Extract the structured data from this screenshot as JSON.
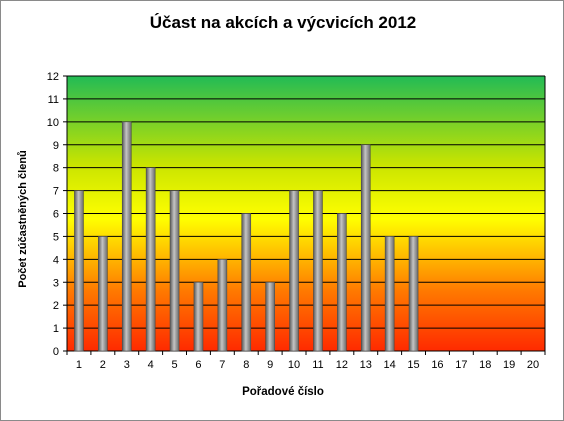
{
  "chart_data": {
    "type": "bar",
    "title": "Účast na akcích a výcvicích 2012",
    "xlabel": "Pořadové číslo",
    "ylabel": "Počet zúčastněných členů",
    "categories": [
      "1",
      "2",
      "3",
      "4",
      "5",
      "6",
      "7",
      "8",
      "9",
      "10",
      "11",
      "12",
      "13",
      "14",
      "15",
      "16",
      "17",
      "18",
      "19",
      "20"
    ],
    "values": [
      7,
      5,
      10,
      8,
      7,
      3,
      4,
      6,
      3,
      7,
      7,
      6,
      9,
      5,
      5,
      0,
      0,
      0,
      0,
      0
    ],
    "ylim": [
      0,
      12
    ],
    "yticks": [
      "0",
      "1",
      "2",
      "3",
      "4",
      "5",
      "6",
      "7",
      "8",
      "9",
      "10",
      "11",
      "12"
    ],
    "grid": true,
    "colors": {
      "bar": "#8c8c8c",
      "background_bottom": "#ff2a00",
      "background_middle": "#ffff00",
      "background_top": "#22bb55",
      "gridline": "#000000"
    }
  }
}
